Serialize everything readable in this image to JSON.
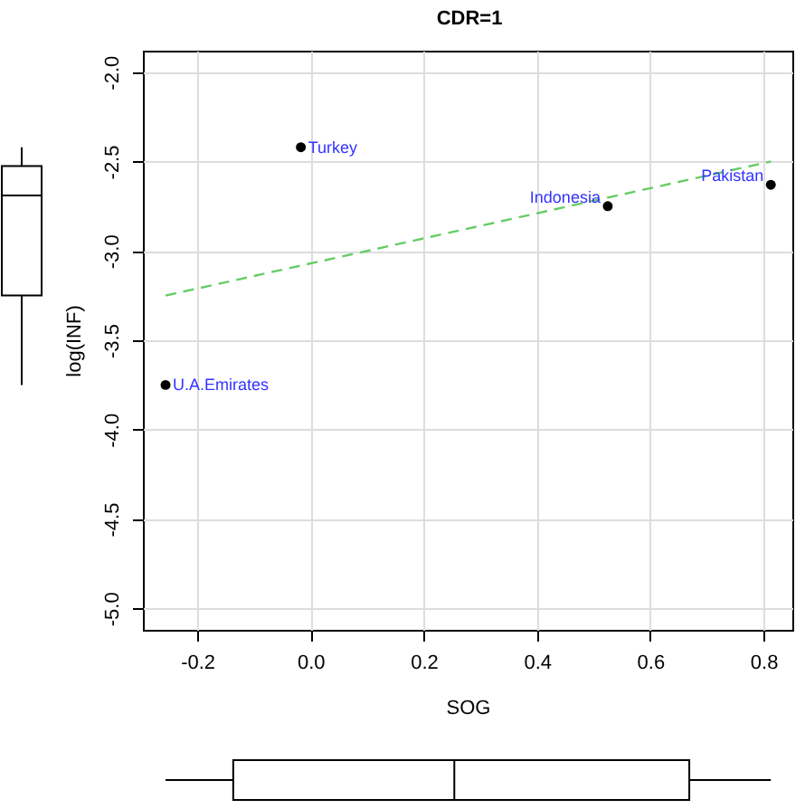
{
  "chart_data": {
    "type": "scatter",
    "title": "CDR=1",
    "xlabel": "SOG",
    "ylabel": "log(INF)",
    "grid": true,
    "marker": "circle",
    "xlim": [
      -0.296,
      0.851
    ],
    "ylim": [
      -5.12,
      -1.88
    ],
    "xticks": [
      -0.2,
      {
        "value": 0,
        "label": "0.0"
      },
      0.2,
      0.4,
      0.6,
      0.8
    ],
    "yticks": [
      {
        "value": -2,
        "label": "-2.0"
      },
      -2.5,
      {
        "value": -3,
        "label": "-3.0"
      },
      -3.5,
      {
        "value": -4,
        "label": "-4.0"
      },
      -4.5,
      {
        "value": -5,
        "label": "-5.0"
      }
    ],
    "series": [
      {
        "type": "scatter",
        "color": "#000000",
        "x": [
          -0.017,
          0.525,
          0.813,
          -0.256
        ],
        "values": [
          -2.42,
          -2.75,
          -2.63,
          -3.75
        ]
      },
      {
        "type": "line",
        "color": "#66cc66",
        "line_style": "dashed",
        "marker": "none",
        "x": [
          -0.256,
          0.813
        ],
        "values": [
          -3.25,
          -2.5
        ]
      }
    ],
    "annotations": [
      {
        "text": "Turkey",
        "x": -0.017,
        "y": -2.42
      },
      {
        "text": "Indonesia",
        "x": 0.525,
        "y": -2.75
      },
      {
        "text": "Pakistan",
        "x": 0.813,
        "y": -2.63
      },
      {
        "text": "U.A.Emirates",
        "x": -0.256,
        "y": -3.75
      }
    ]
  }
}
